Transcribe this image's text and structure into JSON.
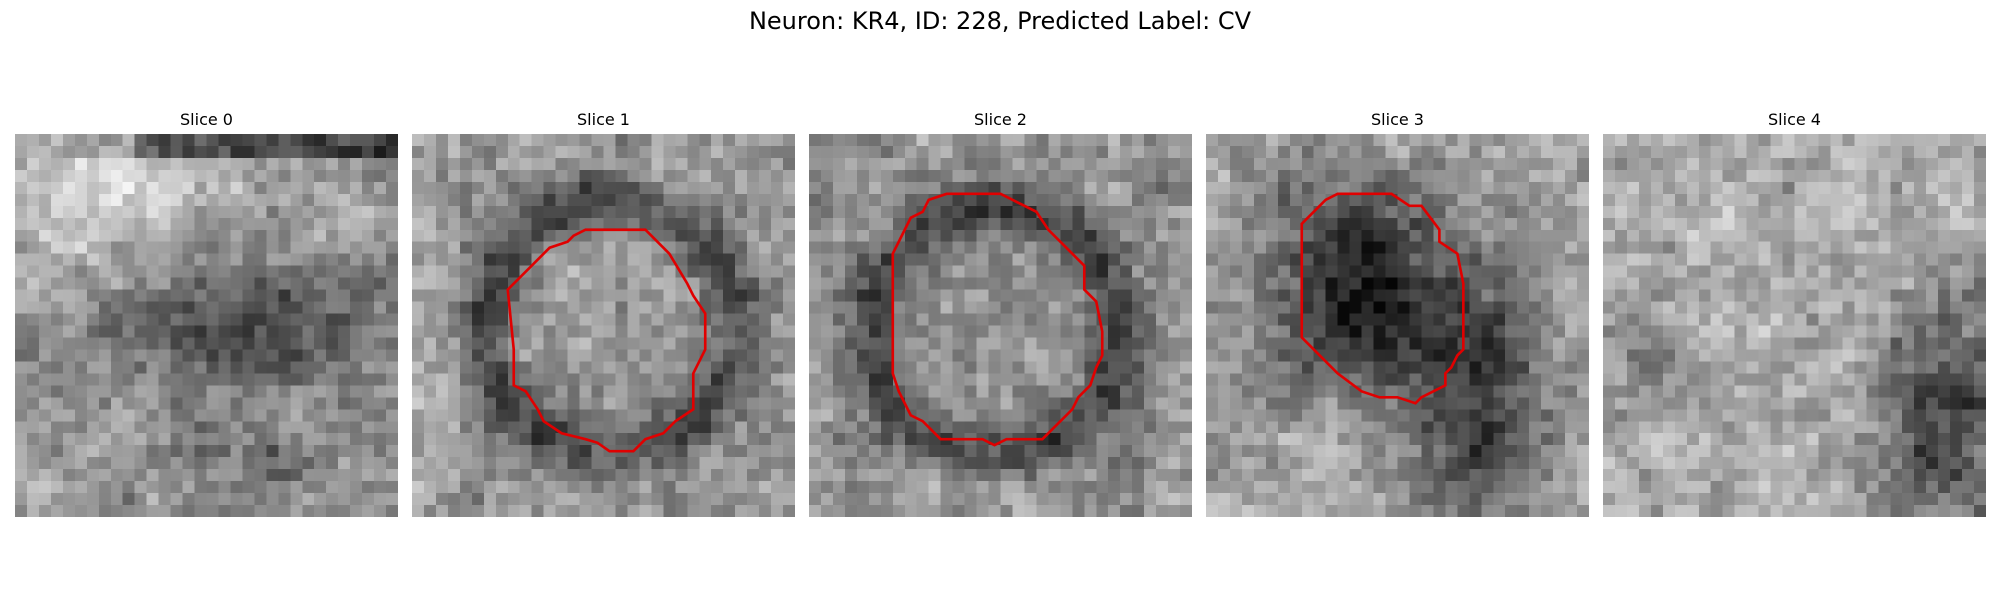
{
  "figure": {
    "title": "Neuron: KR4, ID: 228, Predicted Label: CV"
  },
  "colors": {
    "contour": "#e00000",
    "background": "#ffffff"
  },
  "panels": [
    {
      "title": "Slice 0",
      "has_contour": false,
      "dark_region": "right-middle band"
    },
    {
      "title": "Slice 1",
      "has_contour": true,
      "dark_region": "ring around contour"
    },
    {
      "title": "Slice 2",
      "has_contour": true,
      "dark_region": "ring around contour"
    },
    {
      "title": "Slice 3",
      "has_contour": true,
      "dark_region": "dark filled blob"
    },
    {
      "title": "Slice 4",
      "has_contour": false,
      "dark_region": "bottom-right"
    }
  ]
}
